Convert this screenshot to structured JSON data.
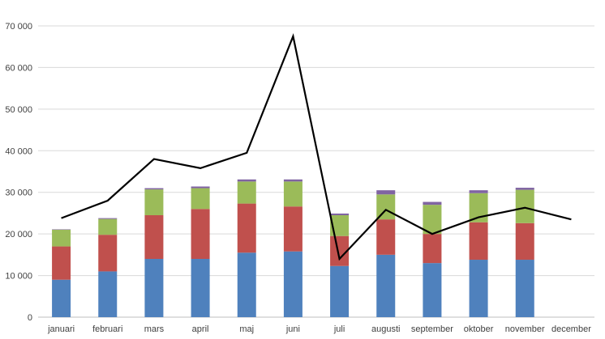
{
  "chart_data": {
    "type": "bar",
    "stacked": true,
    "categories": [
      "januari",
      "februari",
      "mars",
      "april",
      "maj",
      "juni",
      "juli",
      "augusti",
      "september",
      "oktober",
      "november",
      "december"
    ],
    "y_ticks": [
      "0",
      "10 000",
      "20 000",
      "30 000",
      "40 000",
      "50 000",
      "60 000",
      "70 000"
    ],
    "ylim": [
      0,
      70000
    ],
    "grid": true,
    "legend": "none",
    "series": [
      {
        "kind": "bar",
        "color": "#4f81bd",
        "values": [
          9000,
          11000,
          14000,
          14000,
          15500,
          15800,
          12300,
          15000,
          13000,
          13800,
          13800,
          null
        ]
      },
      {
        "kind": "bar",
        "color": "#c0504d",
        "values": [
          8000,
          8800,
          10500,
          12000,
          11800,
          10800,
          7200,
          8500,
          7000,
          9000,
          8800,
          null
        ]
      },
      {
        "kind": "bar",
        "color": "#9bbb59",
        "values": [
          4000,
          3800,
          6200,
          5000,
          5300,
          6000,
          5000,
          6000,
          7000,
          7000,
          8000,
          null
        ]
      },
      {
        "kind": "bar",
        "color": "#8064a2",
        "values": [
          100,
          200,
          300,
          400,
          500,
          500,
          400,
          1000,
          700,
          700,
          500,
          null
        ]
      },
      {
        "kind": "line",
        "color": "#000000",
        "values": [
          23800,
          28000,
          38000,
          35800,
          39500,
          67500,
          14000,
          25800,
          20000,
          24000,
          26300,
          23500
        ]
      }
    ]
  }
}
